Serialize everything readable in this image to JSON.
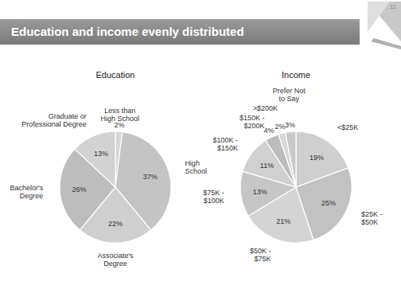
{
  "title": "Education and income evenly distributed",
  "page_number": "11",
  "chart_data": [
    {
      "type": "pie",
      "title": "Education",
      "categories": [
        "Less than High School",
        "High School",
        "Associate's Degree",
        "Bachelor's Degree",
        "Graduate or Professional Degree"
      ],
      "values": [
        2,
        37,
        22,
        26,
        13
      ],
      "value_labels": [
        "2%",
        "37%",
        "22%",
        "26%",
        "13%"
      ],
      "colors": [
        "#d6d6d6",
        "#c4c4c4",
        "#cfcfcf",
        "#bdbdbd",
        "#d2d2d2"
      ],
      "data_labels": true
    },
    {
      "type": "pie",
      "title": "Income",
      "categories": [
        "<$25K",
        "$25K - $50K",
        "$50K - $75K",
        "$75K - $100K",
        "$100K - $150K",
        "$150K - $200K",
        ">$200K",
        "Prefer Not to Say"
      ],
      "values": [
        19,
        25,
        21,
        13,
        11,
        4,
        2,
        3
      ],
      "value_labels": [
        "19%",
        "25%",
        "21%",
        "13%",
        "11%",
        "4%",
        "2%",
        "3%"
      ],
      "colors": [
        "#cfcfcf",
        "#c2c2c2",
        "#d4d4d4",
        "#c6c6c6",
        "#d0d0d0",
        "#bcbcbc",
        "#d8d8d8",
        "#c9c9c9"
      ],
      "data_labels": true
    }
  ]
}
